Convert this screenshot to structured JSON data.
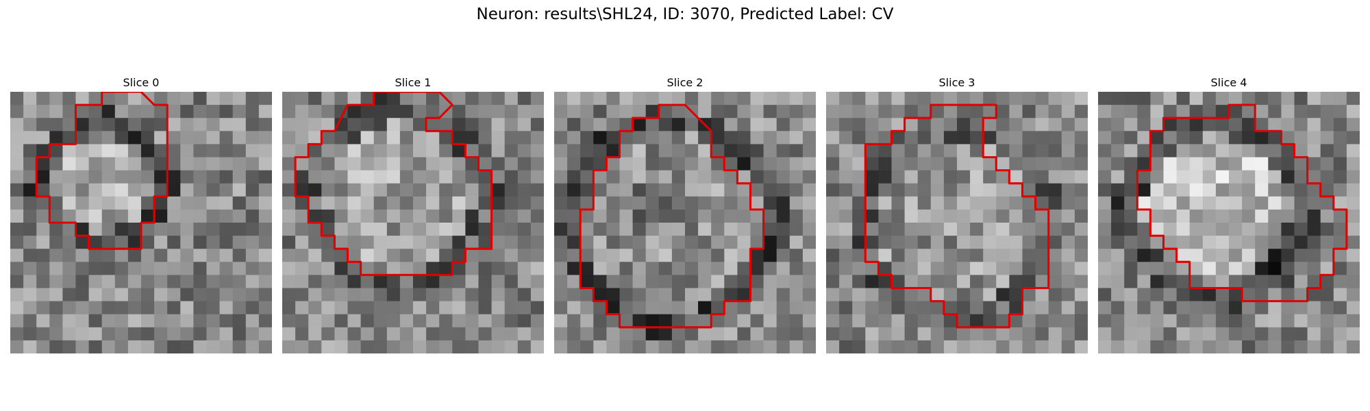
{
  "suptitle": "Neuron: results\\SHL24, ID: 3070, Predicted Label: CV",
  "contour_color": "#e00000",
  "panels": [
    {
      "title": "Slice 0",
      "contour": [
        [
          7,
          0
        ],
        [
          7,
          1
        ],
        [
          5,
          1
        ],
        [
          5,
          4
        ],
        [
          3,
          4
        ],
        [
          3,
          5
        ],
        [
          2,
          5
        ],
        [
          2,
          8
        ],
        [
          3,
          8
        ],
        [
          3,
          10
        ],
        [
          5,
          10
        ],
        [
          5,
          11
        ],
        [
          6,
          11
        ],
        [
          6,
          12
        ],
        [
          10,
          12
        ],
        [
          10,
          11
        ],
        [
          10,
          10
        ],
        [
          11,
          10
        ],
        [
          11,
          8
        ],
        [
          12,
          8
        ],
        [
          12,
          1
        ],
        [
          11,
          1
        ],
        [
          10,
          0
        ]
      ]
    },
    {
      "title": "Slice 1",
      "contour": [
        [
          7,
          0
        ],
        [
          7,
          1
        ],
        [
          5,
          1
        ],
        [
          4,
          3
        ],
        [
          3,
          3
        ],
        [
          3,
          4
        ],
        [
          2,
          4
        ],
        [
          2,
          5
        ],
        [
          1,
          5
        ],
        [
          1,
          8
        ],
        [
          2,
          8
        ],
        [
          2,
          10
        ],
        [
          3,
          10
        ],
        [
          3,
          11
        ],
        [
          4,
          11
        ],
        [
          4,
          12
        ],
        [
          5,
          12
        ],
        [
          5,
          13
        ],
        [
          6,
          13
        ],
        [
          6,
          14
        ],
        [
          13,
          14
        ],
        [
          13,
          13
        ],
        [
          14,
          13
        ],
        [
          14,
          12
        ],
        [
          16,
          12
        ],
        [
          16,
          6
        ],
        [
          15,
          6
        ],
        [
          15,
          5
        ],
        [
          14,
          5
        ],
        [
          14,
          4
        ],
        [
          13,
          4
        ],
        [
          13,
          3
        ],
        [
          11,
          3
        ],
        [
          11,
          2
        ],
        [
          12,
          2
        ],
        [
          13,
          1
        ],
        [
          12,
          0
        ]
      ]
    },
    {
      "title": "Slice 2",
      "contour": [
        [
          8,
          1
        ],
        [
          8,
          2
        ],
        [
          6,
          2
        ],
        [
          6,
          3
        ],
        [
          5,
          3
        ],
        [
          5,
          5
        ],
        [
          4,
          5
        ],
        [
          4,
          6
        ],
        [
          3,
          6
        ],
        [
          3,
          9
        ],
        [
          2,
          9
        ],
        [
          2,
          15
        ],
        [
          3,
          15
        ],
        [
          3,
          16
        ],
        [
          4,
          16
        ],
        [
          4,
          17
        ],
        [
          5,
          17
        ],
        [
          5,
          18
        ],
        [
          8,
          18
        ],
        [
          8,
          18
        ],
        [
          12,
          18
        ],
        [
          12,
          17
        ],
        [
          13,
          17
        ],
        [
          13,
          16
        ],
        [
          15,
          16
        ],
        [
          15,
          12
        ],
        [
          16,
          12
        ],
        [
          16,
          9
        ],
        [
          15,
          9
        ],
        [
          15,
          7
        ],
        [
          14,
          7
        ],
        [
          14,
          6
        ],
        [
          13,
          6
        ],
        [
          13,
          5
        ],
        [
          12,
          5
        ],
        [
          12,
          3
        ],
        [
          10,
          1
        ]
      ]
    },
    {
      "title": "Slice 3",
      "contour": [
        [
          8,
          1
        ],
        [
          8,
          2
        ],
        [
          6,
          2
        ],
        [
          6,
          3
        ],
        [
          5,
          3
        ],
        [
          5,
          4
        ],
        [
          3,
          4
        ],
        [
          3,
          13
        ],
        [
          4,
          13
        ],
        [
          4,
          14
        ],
        [
          5,
          14
        ],
        [
          5,
          15
        ],
        [
          8,
          15
        ],
        [
          8,
          16
        ],
        [
          9,
          16
        ],
        [
          9,
          17
        ],
        [
          10,
          17
        ],
        [
          10,
          18
        ],
        [
          14,
          18
        ],
        [
          14,
          17
        ],
        [
          15,
          17
        ],
        [
          15,
          15
        ],
        [
          17,
          15
        ],
        [
          17,
          9
        ],
        [
          16,
          9
        ],
        [
          16,
          8
        ],
        [
          15,
          8
        ],
        [
          15,
          7
        ],
        [
          14,
          7
        ],
        [
          14,
          6
        ],
        [
          13,
          6
        ],
        [
          13,
          5
        ],
        [
          12,
          5
        ],
        [
          12,
          3
        ],
        [
          12,
          2
        ],
        [
          13,
          2
        ],
        [
          13,
          1
        ]
      ]
    },
    {
      "title": "Slice 4",
      "contour": [
        [
          10,
          1
        ],
        [
          10,
          2
        ],
        [
          5,
          2
        ],
        [
          5,
          3
        ],
        [
          4,
          3
        ],
        [
          4,
          6
        ],
        [
          3,
          6
        ],
        [
          3,
          9
        ],
        [
          4,
          9
        ],
        [
          4,
          11
        ],
        [
          5,
          11
        ],
        [
          5,
          12
        ],
        [
          6,
          12
        ],
        [
          6,
          13
        ],
        [
          7,
          13
        ],
        [
          7,
          15
        ],
        [
          11,
          15
        ],
        [
          11,
          16
        ],
        [
          16,
          16
        ],
        [
          16,
          15
        ],
        [
          17,
          15
        ],
        [
          17,
          14
        ],
        [
          18,
          14
        ],
        [
          18,
          12
        ],
        [
          19,
          12
        ],
        [
          19,
          9
        ],
        [
          18,
          9
        ],
        [
          18,
          8
        ],
        [
          17,
          8
        ],
        [
          17,
          7
        ],
        [
          16,
          7
        ],
        [
          16,
          5
        ],
        [
          15,
          5
        ],
        [
          15,
          4
        ],
        [
          14,
          4
        ],
        [
          14,
          3
        ],
        [
          12,
          3
        ],
        [
          12,
          1
        ]
      ]
    }
  ]
}
